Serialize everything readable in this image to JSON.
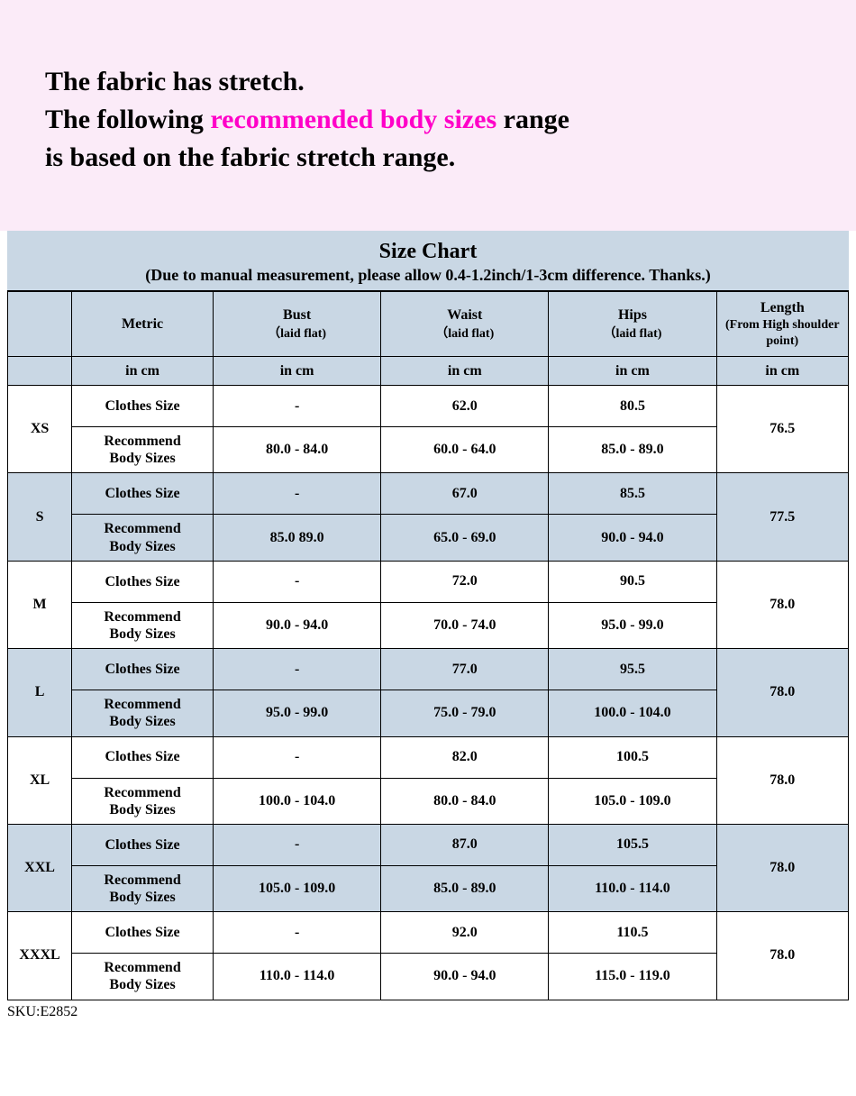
{
  "header": {
    "line1_pre": "The fabric has stretch.",
    "line2_pre": "The following ",
    "line2_highlight": "recommended body sizes",
    "line2_post": " range",
    "line3": "is based on the fabric stretch range."
  },
  "chart_title": "Size Chart",
  "chart_subtitle": "(Due to manual measurement, please allow 0.4-1.2inch/1-3cm difference. Thanks.)",
  "columns": {
    "metric": "Metric",
    "bust": "Bust",
    "bust_sub": "（laid flat)",
    "waist": "Waist",
    "waist_sub": "（laid flat)",
    "hips": "Hips",
    "hips_sub": "（laid flat)",
    "length": "Length",
    "length_sub": "(From High shoulder point)"
  },
  "unit_label": "in cm",
  "row_labels": {
    "clothes": "Clothes Size",
    "recommend_l1": "Recommend",
    "recommend_l2": "Body Sizes"
  },
  "sizes": [
    {
      "label": "XS",
      "clothes": {
        "bust": "-",
        "waist": "62.0",
        "hips": "80.5",
        "length": "76.5"
      },
      "recommend": {
        "bust": "80.0   -  84.0",
        "waist": "60.0   -  64.0",
        "hips": "85.0   -  89.0",
        "length": ""
      }
    },
    {
      "label": "S",
      "clothes": {
        "bust": "-",
        "waist": "67.0",
        "hips": "85.5",
        "length": "77.5"
      },
      "recommend": {
        "bust": "85.0     89.0",
        "waist": "65.0   -  69.0",
        "hips": "90.0   -  94.0",
        "length": ""
      }
    },
    {
      "label": "M",
      "clothes": {
        "bust": "-",
        "waist": "72.0",
        "hips": "90.5",
        "length": "78.0"
      },
      "recommend": {
        "bust": "90.0   -  94.0",
        "waist": "70.0   -  74.0",
        "hips": "95.0   -  99.0",
        "length": ""
      }
    },
    {
      "label": "L",
      "clothes": {
        "bust": "-",
        "waist": "77.0",
        "hips": "95.5",
        "length": "78.0"
      },
      "recommend": {
        "bust": "95.0   -  99.0",
        "waist": "75.0   -  79.0",
        "hips": "100.0   -  104.0",
        "length": ""
      }
    },
    {
      "label": "XL",
      "clothes": {
        "bust": "-",
        "waist": "82.0",
        "hips": "100.5",
        "length": "78.0"
      },
      "recommend": {
        "bust": "100.0   -  104.0",
        "waist": "80.0   -  84.0",
        "hips": "105.0   -  109.0",
        "length": ""
      }
    },
    {
      "label": "XXL",
      "clothes": {
        "bust": "-",
        "waist": "87.0",
        "hips": "105.5",
        "length": "78.0"
      },
      "recommend": {
        "bust": "105.0   -  109.0",
        "waist": "85.0   -  89.0",
        "hips": "110.0   -  114.0",
        "length": ""
      }
    },
    {
      "label": "XXXL",
      "clothes": {
        "bust": "-",
        "waist": "92.0",
        "hips": "110.5",
        "length": "78.0"
      },
      "recommend": {
        "bust": "110.0   -  114.0",
        "waist": "90.0   -  94.0",
        "hips": "115.0   -  119.0",
        "length": ""
      }
    }
  ],
  "sku_label": "SKU:E2852",
  "colors": {
    "header_bg": "#fbebf8",
    "band_bg": "#c9d7e4",
    "highlight": "#ff00c8",
    "text": "#000000",
    "border": "#000000"
  },
  "typography": {
    "header_fontsize": 30,
    "title_fontsize": 24,
    "subtitle_fontsize": 18,
    "cell_fontsize": 16
  }
}
